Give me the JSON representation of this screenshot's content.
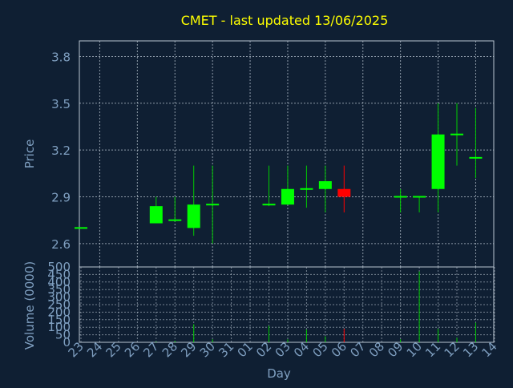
{
  "colors": {
    "background": "#0f1f33",
    "grid": "#b8c4d0",
    "frame": "#b8c4d0",
    "title": "#ffff00",
    "axis_text": "#7f9fc0",
    "up": "#00ff00",
    "down": "#ff0000",
    "wick": "#00cc00"
  },
  "chart_data": {
    "type": "candlestick",
    "title": "CMET - last updated 13/06/2025",
    "xlabel": "Day",
    "ylabel_price": "Price",
    "ylabel_volume": "Volume (0000)",
    "price_ticks": [
      "3.8",
      "3.5",
      "3.2",
      "2.9",
      "2.6"
    ],
    "price_tick_values": [
      3.8,
      3.5,
      3.2,
      2.9,
      2.6
    ],
    "price_range": [
      2.45,
      3.9
    ],
    "volume_ticks": [
      "500",
      "450",
      "400",
      "350",
      "300",
      "250",
      "200",
      "150",
      "100",
      "50",
      "0"
    ],
    "volume_tick_values": [
      500,
      450,
      400,
      350,
      300,
      250,
      200,
      150,
      100,
      50,
      0
    ],
    "volume_range": [
      0,
      500
    ],
    "x_tick_labels": [
      "23",
      "24",
      "25",
      "26",
      "27",
      "28",
      "29",
      "30",
      "31",
      "01",
      "02",
      "03",
      "04",
      "05",
      "06",
      "07",
      "08",
      "09",
      "10",
      "11",
      "12",
      "13",
      "14"
    ],
    "grid": true,
    "candles": [
      {
        "day": "23",
        "open": 2.7,
        "high": 2.7,
        "low": 2.7,
        "close": 2.7,
        "volume": 0
      },
      {
        "day": "27",
        "open": 2.73,
        "high": 2.9,
        "low": 2.73,
        "close": 2.84,
        "volume": 5
      },
      {
        "day": "28",
        "open": 2.75,
        "high": 2.9,
        "low": 2.74,
        "close": 2.75,
        "volume": 10
      },
      {
        "day": "29",
        "open": 2.7,
        "high": 3.1,
        "low": 2.65,
        "close": 2.85,
        "volume": 120
      },
      {
        "day": "30",
        "open": 2.85,
        "high": 3.1,
        "low": 2.6,
        "close": 2.85,
        "volume": 20
      },
      {
        "day": "02",
        "open": 2.85,
        "high": 3.1,
        "low": 2.84,
        "close": 2.85,
        "volume": 110
      },
      {
        "day": "03",
        "open": 2.85,
        "high": 3.1,
        "low": 2.85,
        "close": 2.95,
        "volume": 20
      },
      {
        "day": "04",
        "open": 2.95,
        "high": 3.1,
        "low": 2.83,
        "close": 2.95,
        "volume": 85
      },
      {
        "day": "05",
        "open": 2.95,
        "high": 3.1,
        "low": 2.8,
        "close": 3.0,
        "volume": 40
      },
      {
        "day": "06",
        "open": 2.95,
        "high": 3.1,
        "low": 2.8,
        "close": 2.9,
        "volume": 90
      },
      {
        "day": "09",
        "open": 2.9,
        "high": 2.95,
        "low": 2.8,
        "close": 2.9,
        "volume": 20
      },
      {
        "day": "10",
        "open": 2.9,
        "high": 2.9,
        "low": 2.8,
        "close": 2.9,
        "volume": 470
      },
      {
        "day": "11",
        "open": 2.95,
        "high": 3.5,
        "low": 2.8,
        "close": 3.3,
        "volume": 90
      },
      {
        "day": "12",
        "open": 3.3,
        "high": 3.5,
        "low": 3.1,
        "close": 3.3,
        "volume": 30
      },
      {
        "day": "13",
        "open": 3.15,
        "high": 3.47,
        "low": 3.02,
        "close": 3.15,
        "volume": 130
      }
    ]
  }
}
